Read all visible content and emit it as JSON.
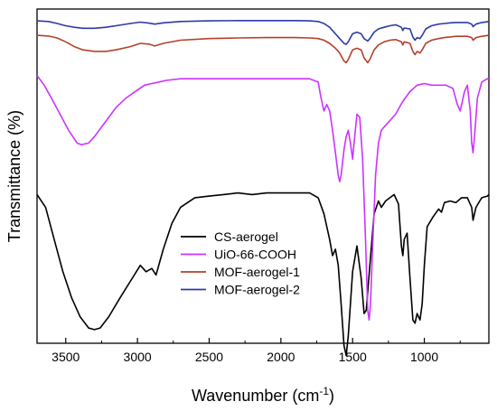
{
  "chart_data": {
    "type": "line",
    "title": "",
    "xlabel": "Wavenumber (cm",
    "xlabel_sup": "-1",
    "xlabel_close": ")",
    "ylabel": "Transmittance (%)",
    "xlim": [
      3700,
      550
    ],
    "x_reversed": true,
    "x_ticks": [
      3500,
      3000,
      2500,
      2000,
      1500,
      1000
    ],
    "y_ticks_shown": false,
    "grid": false,
    "legend_position": "lower-center-right",
    "series": [
      {
        "name": "CS-aerogel",
        "color": "#000000",
        "points": [
          [
            3700,
            0.56
          ],
          [
            3640,
            0.6
          ],
          [
            3580,
            0.7
          ],
          [
            3520,
            0.8
          ],
          [
            3460,
            0.88
          ],
          [
            3400,
            0.94
          ],
          [
            3340,
            0.975
          ],
          [
            3300,
            0.98
          ],
          [
            3260,
            0.975
          ],
          [
            3200,
            0.94
          ],
          [
            3120,
            0.88
          ],
          [
            3050,
            0.83
          ],
          [
            2980,
            0.78
          ],
          [
            2940,
            0.8
          ],
          [
            2900,
            0.79
          ],
          [
            2870,
            0.81
          ],
          [
            2820,
            0.73
          ],
          [
            2760,
            0.65
          ],
          [
            2700,
            0.6
          ],
          [
            2600,
            0.57
          ],
          [
            2500,
            0.565
          ],
          [
            2400,
            0.56
          ],
          [
            2300,
            0.555
          ],
          [
            2200,
            0.56
          ],
          [
            2100,
            0.555
          ],
          [
            2000,
            0.555
          ],
          [
            1900,
            0.555
          ],
          [
            1800,
            0.555
          ],
          [
            1740,
            0.57
          ],
          [
            1700,
            0.62
          ],
          [
            1660,
            0.7
          ],
          [
            1640,
            0.75
          ],
          [
            1620,
            0.73
          ],
          [
            1600,
            0.78
          ],
          [
            1580,
            0.9
          ],
          [
            1560,
            1.03
          ],
          [
            1545,
            1.06
          ],
          [
            1530,
            1.0
          ],
          [
            1500,
            0.8
          ],
          [
            1470,
            0.72
          ],
          [
            1440,
            0.82
          ],
          [
            1420,
            0.93
          ],
          [
            1405,
            0.92
          ],
          [
            1380,
            0.78
          ],
          [
            1350,
            0.62
          ],
          [
            1320,
            0.58
          ],
          [
            1300,
            0.6
          ],
          [
            1270,
            0.58
          ],
          [
            1240,
            0.57
          ],
          [
            1210,
            0.56
          ],
          [
            1180,
            0.59
          ],
          [
            1160,
            0.72
          ],
          [
            1150,
            0.75
          ],
          [
            1140,
            0.7
          ],
          [
            1120,
            0.68
          ],
          [
            1100,
            0.82
          ],
          [
            1080,
            0.95
          ],
          [
            1065,
            0.96
          ],
          [
            1050,
            0.93
          ],
          [
            1030,
            0.95
          ],
          [
            1015,
            0.9
          ],
          [
            1000,
            0.78
          ],
          [
            980,
            0.66
          ],
          [
            940,
            0.63
          ],
          [
            900,
            0.605
          ],
          [
            880,
            0.615
          ],
          [
            860,
            0.585
          ],
          [
            820,
            0.58
          ],
          [
            780,
            0.585
          ],
          [
            740,
            0.57
          ],
          [
            700,
            0.57
          ],
          [
            670,
            0.6
          ],
          [
            660,
            0.64
          ],
          [
            640,
            0.6
          ],
          [
            600,
            0.57
          ],
          [
            560,
            0.565
          ],
          [
            550,
            0.56
          ]
        ]
      },
      {
        "name": "UiO-66-COOH",
        "color": "#cc33ff",
        "points": [
          [
            3700,
            0.19
          ],
          [
            3650,
            0.22
          ],
          [
            3600,
            0.26
          ],
          [
            3540,
            0.31
          ],
          [
            3480,
            0.36
          ],
          [
            3420,
            0.4
          ],
          [
            3390,
            0.405
          ],
          [
            3340,
            0.4
          ],
          [
            3300,
            0.38
          ],
          [
            3250,
            0.35
          ],
          [
            3200,
            0.32
          ],
          [
            3150,
            0.29
          ],
          [
            3080,
            0.26
          ],
          [
            3000,
            0.235
          ],
          [
            2950,
            0.22
          ],
          [
            2900,
            0.215
          ],
          [
            2850,
            0.21
          ],
          [
            2800,
            0.205
          ],
          [
            2700,
            0.2
          ],
          [
            2600,
            0.2
          ],
          [
            2500,
            0.2
          ],
          [
            2400,
            0.2
          ],
          [
            2300,
            0.2
          ],
          [
            2200,
            0.2
          ],
          [
            2100,
            0.2
          ],
          [
            2000,
            0.2
          ],
          [
            1900,
            0.2
          ],
          [
            1800,
            0.2
          ],
          [
            1740,
            0.21
          ],
          [
            1720,
            0.26
          ],
          [
            1700,
            0.3
          ],
          [
            1680,
            0.28
          ],
          [
            1660,
            0.3
          ],
          [
            1640,
            0.36
          ],
          [
            1620,
            0.43
          ],
          [
            1600,
            0.5
          ],
          [
            1590,
            0.52
          ],
          [
            1580,
            0.5
          ],
          [
            1560,
            0.42
          ],
          [
            1545,
            0.38
          ],
          [
            1530,
            0.36
          ],
          [
            1515,
            0.4
          ],
          [
            1500,
            0.45
          ],
          [
            1490,
            0.4
          ],
          [
            1470,
            0.31
          ],
          [
            1450,
            0.32
          ],
          [
            1430,
            0.45
          ],
          [
            1410,
            0.7
          ],
          [
            1395,
            0.92
          ],
          [
            1385,
            0.95
          ],
          [
            1375,
            0.9
          ],
          [
            1360,
            0.72
          ],
          [
            1340,
            0.5
          ],
          [
            1320,
            0.4
          ],
          [
            1300,
            0.36
          ],
          [
            1280,
            0.35
          ],
          [
            1260,
            0.34
          ],
          [
            1240,
            0.33
          ],
          [
            1200,
            0.31
          ],
          [
            1150,
            0.27
          ],
          [
            1100,
            0.24
          ],
          [
            1050,
            0.22
          ],
          [
            1000,
            0.215
          ],
          [
            950,
            0.22
          ],
          [
            900,
            0.22
          ],
          [
            850,
            0.22
          ],
          [
            800,
            0.23
          ],
          [
            770,
            0.28
          ],
          [
            750,
            0.3
          ],
          [
            720,
            0.24
          ],
          [
            700,
            0.22
          ],
          [
            680,
            0.3
          ],
          [
            670,
            0.4
          ],
          [
            660,
            0.43
          ],
          [
            650,
            0.38
          ],
          [
            630,
            0.26
          ],
          [
            600,
            0.21
          ],
          [
            560,
            0.2
          ],
          [
            550,
            0.2
          ]
        ]
      },
      {
        "name": "MOF-aerogel-1",
        "color": "#b5402a",
        "points": [
          [
            3700,
            0.065
          ],
          [
            3620,
            0.067
          ],
          [
            3560,
            0.073
          ],
          [
            3500,
            0.085
          ],
          [
            3440,
            0.1
          ],
          [
            3380,
            0.11
          ],
          [
            3300,
            0.115
          ],
          [
            3220,
            0.115
          ],
          [
            3150,
            0.11
          ],
          [
            3050,
            0.1
          ],
          [
            2980,
            0.09
          ],
          [
            2920,
            0.092
          ],
          [
            2880,
            0.098
          ],
          [
            2820,
            0.09
          ],
          [
            2700,
            0.08
          ],
          [
            2500,
            0.075
          ],
          [
            2300,
            0.073
          ],
          [
            2100,
            0.072
          ],
          [
            1900,
            0.072
          ],
          [
            1800,
            0.073
          ],
          [
            1740,
            0.075
          ],
          [
            1700,
            0.08
          ],
          [
            1660,
            0.09
          ],
          [
            1620,
            0.105
          ],
          [
            1590,
            0.12
          ],
          [
            1560,
            0.145
          ],
          [
            1545,
            0.15
          ],
          [
            1530,
            0.14
          ],
          [
            1500,
            0.11
          ],
          [
            1470,
            0.105
          ],
          [
            1440,
            0.11
          ],
          [
            1420,
            0.135
          ],
          [
            1395,
            0.15
          ],
          [
            1380,
            0.14
          ],
          [
            1350,
            0.11
          ],
          [
            1320,
            0.095
          ],
          [
            1280,
            0.085
          ],
          [
            1240,
            0.08
          ],
          [
            1200,
            0.078
          ],
          [
            1160,
            0.085
          ],
          [
            1150,
            0.095
          ],
          [
            1140,
            0.085
          ],
          [
            1100,
            0.09
          ],
          [
            1080,
            0.115
          ],
          [
            1065,
            0.125
          ],
          [
            1050,
            0.115
          ],
          [
            1030,
            0.12
          ],
          [
            1015,
            0.11
          ],
          [
            990,
            0.09
          ],
          [
            950,
            0.08
          ],
          [
            900,
            0.075
          ],
          [
            860,
            0.072
          ],
          [
            820,
            0.07
          ],
          [
            780,
            0.068
          ],
          [
            740,
            0.068
          ],
          [
            700,
            0.068
          ],
          [
            670,
            0.072
          ],
          [
            660,
            0.08
          ],
          [
            640,
            0.072
          ],
          [
            600,
            0.068
          ],
          [
            550,
            0.065
          ]
        ]
      },
      {
        "name": "MOF-aerogel-2",
        "color": "#2e3aa8",
        "points": [
          [
            3700,
            0.02
          ],
          [
            3620,
            0.022
          ],
          [
            3560,
            0.028
          ],
          [
            3500,
            0.035
          ],
          [
            3440,
            0.04
          ],
          [
            3380,
            0.043
          ],
          [
            3300,
            0.043
          ],
          [
            3220,
            0.04
          ],
          [
            3150,
            0.035
          ],
          [
            3050,
            0.028
          ],
          [
            2980,
            0.024
          ],
          [
            2920,
            0.027
          ],
          [
            2880,
            0.03
          ],
          [
            2820,
            0.026
          ],
          [
            2700,
            0.022
          ],
          [
            2500,
            0.02
          ],
          [
            2300,
            0.019
          ],
          [
            2100,
            0.019
          ],
          [
            1900,
            0.019
          ],
          [
            1800,
            0.02
          ],
          [
            1740,
            0.022
          ],
          [
            1700,
            0.028
          ],
          [
            1660,
            0.04
          ],
          [
            1620,
            0.06
          ],
          [
            1590,
            0.075
          ],
          [
            1560,
            0.09
          ],
          [
            1545,
            0.093
          ],
          [
            1530,
            0.085
          ],
          [
            1500,
            0.06
          ],
          [
            1470,
            0.055
          ],
          [
            1440,
            0.06
          ],
          [
            1420,
            0.075
          ],
          [
            1395,
            0.083
          ],
          [
            1380,
            0.075
          ],
          [
            1350,
            0.055
          ],
          [
            1320,
            0.045
          ],
          [
            1280,
            0.04
          ],
          [
            1240,
            0.035
          ],
          [
            1200,
            0.032
          ],
          [
            1160,
            0.04
          ],
          [
            1150,
            0.05
          ],
          [
            1140,
            0.042
          ],
          [
            1100,
            0.045
          ],
          [
            1080,
            0.07
          ],
          [
            1065,
            0.08
          ],
          [
            1050,
            0.072
          ],
          [
            1030,
            0.075
          ],
          [
            1015,
            0.065
          ],
          [
            990,
            0.045
          ],
          [
            950,
            0.035
          ],
          [
            900,
            0.03
          ],
          [
            860,
            0.028
          ],
          [
            820,
            0.026
          ],
          [
            780,
            0.025
          ],
          [
            740,
            0.025
          ],
          [
            700,
            0.025
          ],
          [
            670,
            0.03
          ],
          [
            660,
            0.038
          ],
          [
            640,
            0.03
          ],
          [
            600,
            0.025
          ],
          [
            550,
            0.022
          ]
        ]
      }
    ]
  }
}
